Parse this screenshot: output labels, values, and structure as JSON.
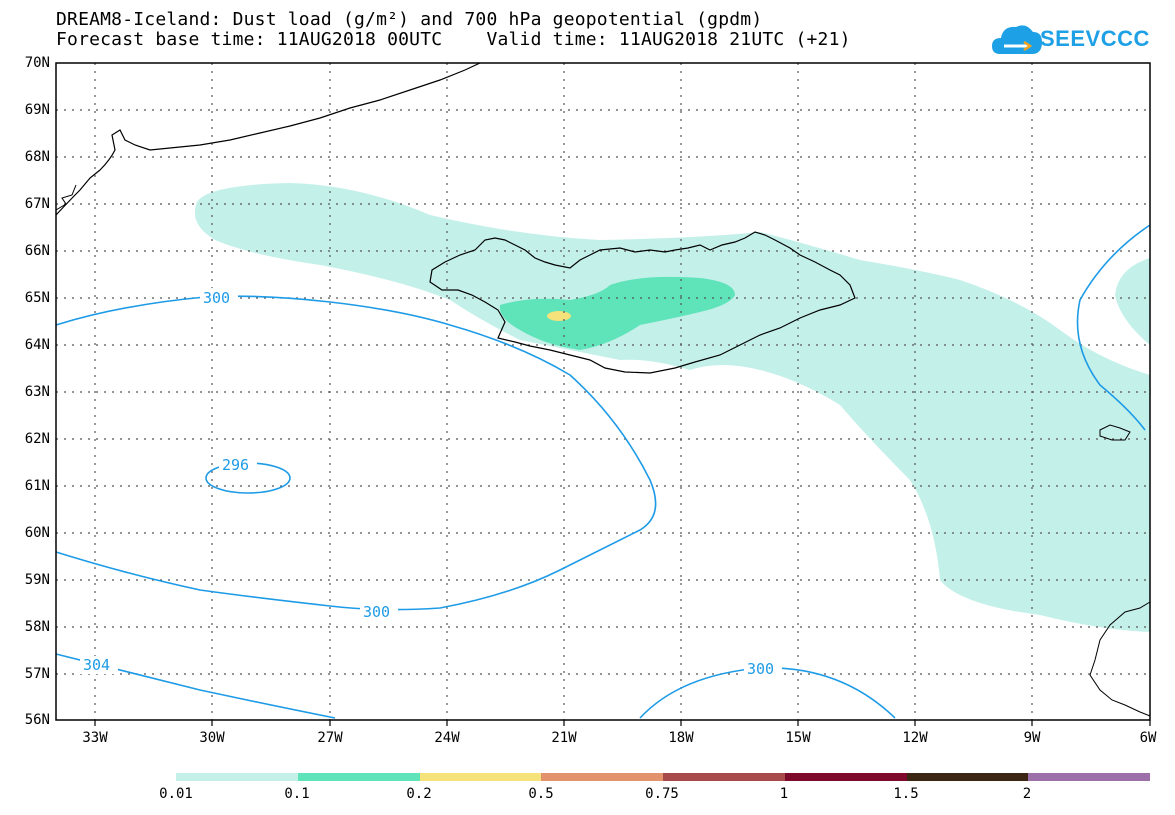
{
  "header": {
    "title_line1": "DREAM8-Iceland: Dust load (g/m²) and 700 hPa geopotential (gpdm)",
    "title_line2": "Forecast base time: 11AUG2018 00UTC    Valid time: 11AUG2018 21UTC (+21)",
    "logo_text": "SEEVCCC",
    "logo_color": "#1ea0e6"
  },
  "map": {
    "lat_labels": [
      "70N",
      "69N",
      "68N",
      "67N",
      "66N",
      "65N",
      "64N",
      "63N",
      "62N",
      "61N",
      "60N",
      "59N",
      "58N",
      "57N",
      "56N"
    ],
    "lon_labels": [
      "33W",
      "30W",
      "27W",
      "24W",
      "21W",
      "18W",
      "15W",
      "12W",
      "9W",
      "6W"
    ],
    "contour_labels": [
      "300",
      "296",
      "300",
      "304",
      "300"
    ],
    "dust_colors": {
      "light": "#c4f0ea",
      "medium": "#5fe3b9",
      "high": "#f5e27a"
    },
    "contour_color": "#1e9be6"
  },
  "colorbar": {
    "colors": [
      "#c4f0ea",
      "#5fe3b9",
      "#f5e27a",
      "#e3936b",
      "#a94a4a",
      "#7d0a2a",
      "#3b2614",
      "#9d6fa8"
    ],
    "labels": [
      "0.01",
      "0.1",
      "0.2",
      "0.5",
      "0.75",
      "1",
      "1.5",
      "2"
    ]
  }
}
